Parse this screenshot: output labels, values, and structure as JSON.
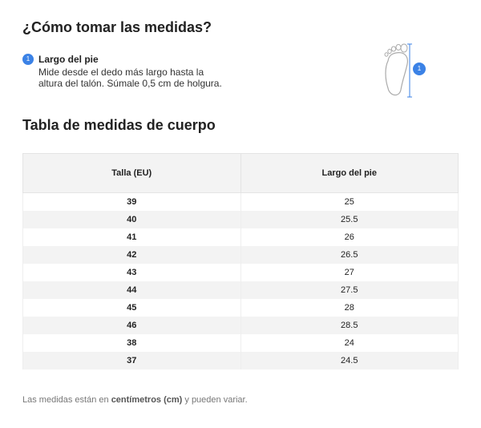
{
  "heading": "¿Cómo tomar las medidas?",
  "instructions": [
    {
      "number": "1",
      "title": "Largo del pie",
      "lines": [
        "Mide desde el dedo más largo hasta la",
        "altura del talón. Súmale 0,5 cm de holgura."
      ]
    }
  ],
  "table_title": "Tabla de medidas de cuerpo",
  "table": {
    "headers": [
      "Talla (EU)",
      "Largo del pie"
    ],
    "rows": [
      [
        "39",
        "25"
      ],
      [
        "40",
        "25.5"
      ],
      [
        "41",
        "26"
      ],
      [
        "42",
        "26.5"
      ],
      [
        "43",
        "27"
      ],
      [
        "44",
        "27.5"
      ],
      [
        "45",
        "28"
      ],
      [
        "46",
        "28.5"
      ],
      [
        "38",
        "24"
      ],
      [
        "37",
        "24.5"
      ]
    ]
  },
  "footer": {
    "before": "Las medidas están en ",
    "bold": "centímetros (cm)",
    "after": " y pueden variar."
  }
}
